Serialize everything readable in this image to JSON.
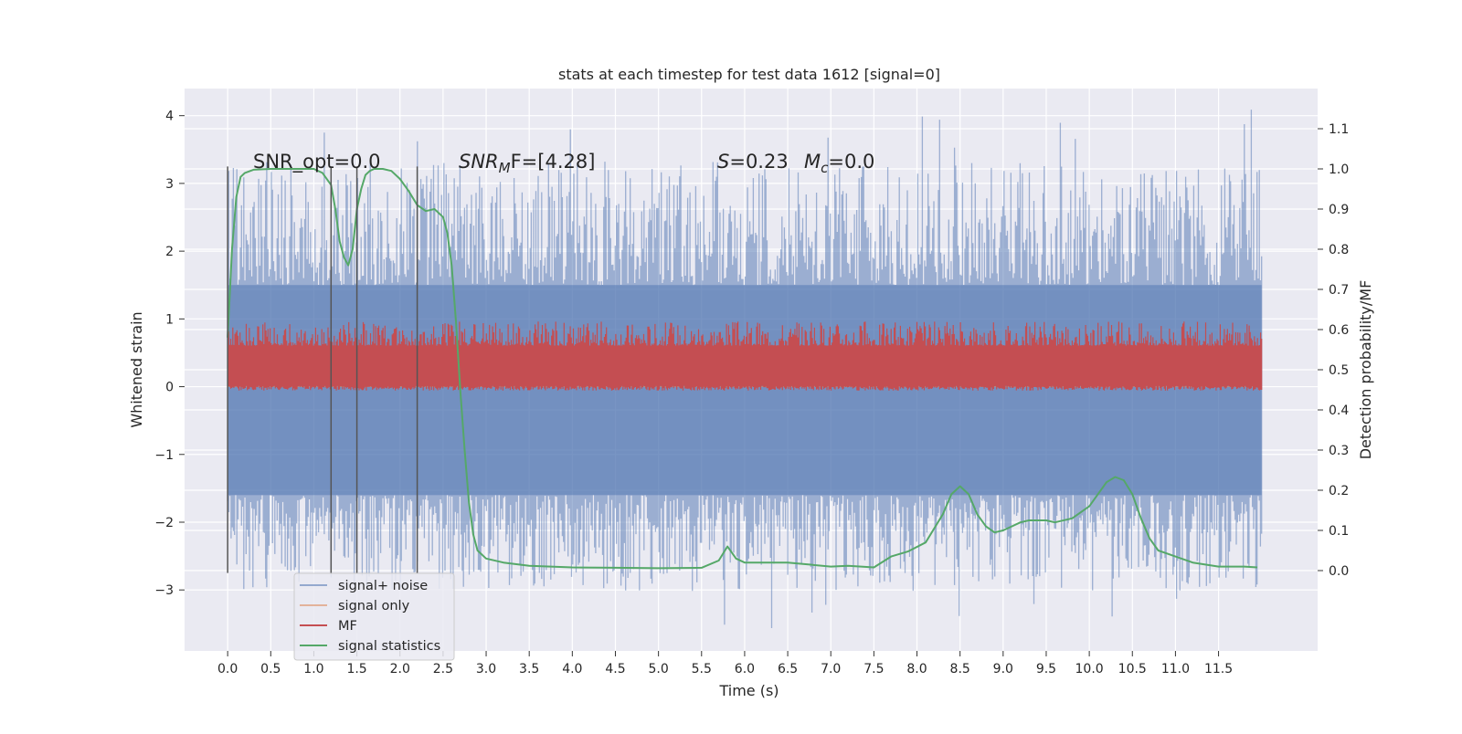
{
  "chart_data": {
    "type": "line",
    "title": "stats at each timestep for test data 1612 [signal=0]",
    "xlabel": "Time (s)",
    "ylabel_left": "Whitened strain",
    "ylabel_right": "Detection probability/MF",
    "xlim": [
      -0.5,
      12.65
    ],
    "ylim_left": [
      -3.9,
      4.4
    ],
    "ylim_right": [
      -0.2,
      1.2
    ],
    "x_ticks": [
      "0.0",
      "0.5",
      "1.0",
      "1.5",
      "2.0",
      "2.5",
      "3.0",
      "3.5",
      "4.0",
      "4.5",
      "5.0",
      "5.5",
      "6.0",
      "6.5",
      "7.0",
      "7.5",
      "8.0",
      "8.5",
      "9.0",
      "9.5",
      "10.0",
      "10.5",
      "11.0",
      "11.5"
    ],
    "y_ticks_left": [
      "−3",
      "−2",
      "−1",
      "0",
      "1",
      "2",
      "3",
      "4"
    ],
    "y_ticks_right": [
      "0.0",
      "0.1",
      "0.2",
      "0.3",
      "0.4",
      "0.5",
      "0.6",
      "0.7",
      "0.8",
      "0.9",
      "1.0",
      "1.1"
    ],
    "grid": true,
    "legend_position": "lower-left",
    "background": "#eaeaf2",
    "annotations": {
      "snr_opt": "SNR_opt=0.0",
      "snr_mf_prefix": "SNR",
      "snr_mf_sub": "M",
      "snr_mf_suffix": "F=[4.28]",
      "s_symbol": "S",
      "s_value": "=0.23",
      "mc_symbol": "M",
      "mc_sub": "c",
      "mc_value": "=0.0"
    },
    "vertical_markers": [
      0.0,
      1.2,
      1.5,
      2.2
    ],
    "series": [
      {
        "name": "signal+ noise",
        "color": "#4c72b0",
        "axis": "left",
        "band": {
          "x_start": 0.0,
          "x_end": 12.0,
          "core_low": -1.6,
          "core_high": 1.5,
          "spike_max": 4.1,
          "spike_min": -3.6
        }
      },
      {
        "name": "signal only",
        "color": "#dd8452",
        "axis": "left",
        "x": [
          0.0,
          12.0
        ],
        "y": [
          0.0,
          0.0
        ]
      },
      {
        "name": "MF",
        "color": "#c44e52",
        "axis": "right",
        "band": {
          "x_start": 0.0,
          "x_end": 12.0,
          "low": 0.46,
          "high": 0.56,
          "spike_max": 0.62
        }
      },
      {
        "name": "signal statistics",
        "color": "#55a868",
        "axis": "right",
        "x": [
          0.0,
          0.05,
          0.1,
          0.15,
          0.2,
          0.3,
          0.5,
          0.8,
          1.0,
          1.1,
          1.2,
          1.25,
          1.3,
          1.35,
          1.4,
          1.45,
          1.5,
          1.55,
          1.6,
          1.65,
          1.7,
          1.8,
          1.9,
          2.0,
          2.1,
          2.2,
          2.3,
          2.4,
          2.5,
          2.55,
          2.6,
          2.65,
          2.7,
          2.75,
          2.8,
          2.85,
          2.9,
          3.0,
          3.2,
          3.5,
          4.0,
          4.5,
          5.0,
          5.5,
          5.7,
          5.8,
          5.9,
          6.0,
          6.5,
          7.0,
          7.2,
          7.5,
          7.7,
          7.9,
          8.1,
          8.3,
          8.4,
          8.5,
          8.6,
          8.7,
          8.8,
          8.9,
          9.0,
          9.1,
          9.2,
          9.3,
          9.5,
          9.6,
          9.8,
          10.0,
          10.1,
          10.2,
          10.3,
          10.4,
          10.5,
          10.6,
          10.7,
          10.8,
          11.0,
          11.2,
          11.5,
          11.8,
          11.95
        ],
        "y": [
          0.58,
          0.8,
          0.93,
          0.98,
          0.99,
          0.998,
          1.0,
          1.0,
          1.0,
          0.99,
          0.96,
          0.9,
          0.82,
          0.78,
          0.76,
          0.8,
          0.9,
          0.95,
          0.985,
          0.995,
          1.0,
          1.0,
          0.995,
          0.975,
          0.945,
          0.91,
          0.895,
          0.9,
          0.88,
          0.84,
          0.76,
          0.62,
          0.45,
          0.3,
          0.17,
          0.09,
          0.05,
          0.03,
          0.02,
          0.012,
          0.008,
          0.007,
          0.006,
          0.007,
          0.025,
          0.06,
          0.03,
          0.02,
          0.02,
          0.01,
          0.012,
          0.008,
          0.035,
          0.048,
          0.07,
          0.14,
          0.19,
          0.21,
          0.19,
          0.14,
          0.11,
          0.095,
          0.1,
          0.11,
          0.12,
          0.125,
          0.125,
          0.12,
          0.13,
          0.16,
          0.19,
          0.22,
          0.233,
          0.225,
          0.19,
          0.13,
          0.08,
          0.05,
          0.035,
          0.02,
          0.01,
          0.01,
          0.008
        ]
      }
    ]
  }
}
